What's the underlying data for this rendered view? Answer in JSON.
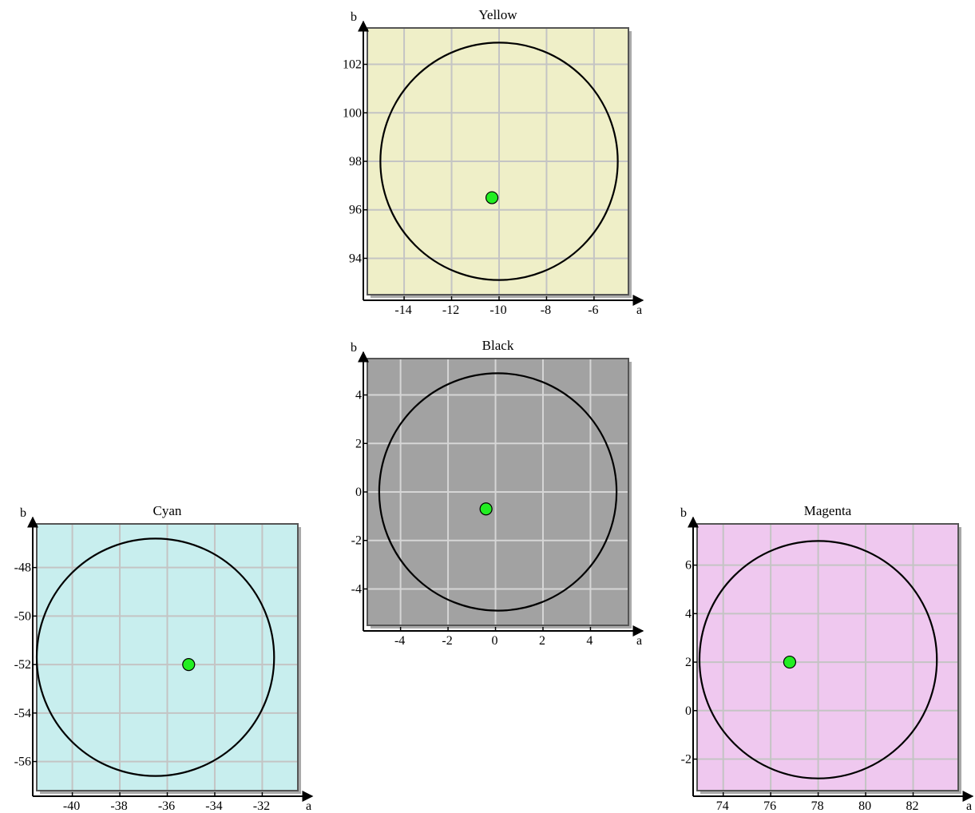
{
  "chart_data": [
    {
      "type": "scatter",
      "title": "Yellow",
      "xlabel": "a",
      "ylabel": "b",
      "xlim": [
        -15.55,
        -4.55
      ],
      "ylim": [
        92.5,
        103.5
      ],
      "xticks": [
        -14,
        -12,
        -10,
        -8,
        -6
      ],
      "yticks": [
        94,
        96,
        98,
        100,
        102
      ],
      "background": "#efefc8",
      "grid": true,
      "circle": {
        "cx": -10.0,
        "cy": 98.0,
        "r": 5.0
      },
      "point": {
        "x": -10.3,
        "y": 96.5,
        "color": "#22ee22"
      }
    },
    {
      "type": "scatter",
      "title": "Black",
      "xlabel": "a",
      "ylabel": "b",
      "xlim": [
        -5.4,
        5.6
      ],
      "ylim": [
        -5.5,
        5.5
      ],
      "xticks": [
        -4,
        -2,
        0,
        2,
        4
      ],
      "yticks": [
        -4,
        -2,
        0,
        2,
        4
      ],
      "background": "#a2a2a2",
      "grid": true,
      "circle": {
        "cx": 0.1,
        "cy": 0.0,
        "r": 5.0
      },
      "point": {
        "x": -0.4,
        "y": -0.7,
        "color": "#22ee22"
      }
    },
    {
      "type": "scatter",
      "title": "Cyan",
      "xlabel": "a",
      "ylabel": "b",
      "xlim": [
        -41.5,
        -30.5
      ],
      "ylim": [
        -57.2,
        -46.2
      ],
      "xticks": [
        -40,
        -38,
        -36,
        -34,
        -32
      ],
      "yticks": [
        -48,
        -50,
        -52,
        -54,
        -56
      ],
      "background": "#c8eeee",
      "grid": true,
      "circle": {
        "cx": -36.5,
        "cy": -51.7,
        "r": 5.0
      },
      "point": {
        "x": -35.1,
        "y": -52.0,
        "color": "#22ee22"
      }
    },
    {
      "type": "scatter",
      "title": "Magenta",
      "xlabel": "a",
      "ylabel": "b",
      "xlim": [
        72.9,
        83.9
      ],
      "ylim": [
        -3.3,
        7.7
      ],
      "xticks": [
        74,
        76,
        78,
        80,
        82
      ],
      "yticks": [
        -2,
        0,
        2,
        4,
        6
      ],
      "background": "#efc8ef",
      "grid": true,
      "circle": {
        "cx": 78.0,
        "cy": 2.1,
        "r": 5.0
      },
      "point": {
        "x": 76.8,
        "y": 2.0,
        "color": "#22ee22"
      }
    }
  ]
}
